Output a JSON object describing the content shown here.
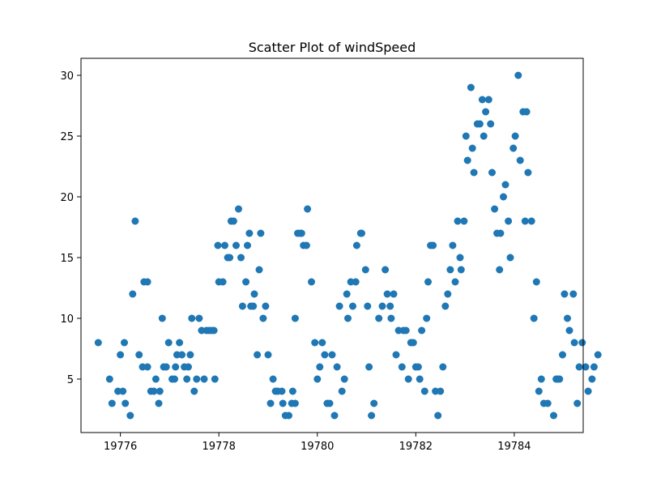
{
  "chart_data": {
    "type": "scatter",
    "title": "Scatter Plot of windSpeed",
    "xlabel": "",
    "ylabel": "",
    "xlim": [
      19775.2,
      19785.4
    ],
    "ylim": [
      0.6,
      31.4
    ],
    "x_ticks": [
      19776,
      19778,
      19780,
      19782,
      19784
    ],
    "y_ticks": [
      5,
      10,
      15,
      20,
      25,
      30
    ],
    "grid": false,
    "marker_color": "#1f77b4",
    "points": [
      [
        19775.55,
        8
      ],
      [
        19775.78,
        5
      ],
      [
        19775.83,
        3
      ],
      [
        19775.95,
        4
      ],
      [
        19776.0,
        7
      ],
      [
        19776.05,
        4
      ],
      [
        19776.08,
        8
      ],
      [
        19776.1,
        3
      ],
      [
        19776.2,
        2
      ],
      [
        19776.25,
        12
      ],
      [
        19776.3,
        18
      ],
      [
        19776.38,
        7
      ],
      [
        19776.45,
        6
      ],
      [
        19776.48,
        13
      ],
      [
        19776.55,
        13
      ],
      [
        19776.55,
        6
      ],
      [
        19776.62,
        4
      ],
      [
        19776.68,
        4
      ],
      [
        19776.72,
        5
      ],
      [
        19776.78,
        3
      ],
      [
        19776.8,
        4
      ],
      [
        19776.85,
        10
      ],
      [
        19776.88,
        6
      ],
      [
        19776.93,
        6
      ],
      [
        19776.98,
        8
      ],
      [
        19777.05,
        5
      ],
      [
        19777.1,
        5
      ],
      [
        19777.12,
        6
      ],
      [
        19777.15,
        7
      ],
      [
        19777.2,
        8
      ],
      [
        19777.25,
        7
      ],
      [
        19777.3,
        6
      ],
      [
        19777.35,
        5
      ],
      [
        19777.38,
        6
      ],
      [
        19777.42,
        7
      ],
      [
        19777.45,
        10
      ],
      [
        19777.5,
        4
      ],
      [
        19777.55,
        5
      ],
      [
        19777.6,
        10
      ],
      [
        19777.65,
        9
      ],
      [
        19777.7,
        5
      ],
      [
        19777.75,
        9
      ],
      [
        19777.8,
        9
      ],
      [
        19777.85,
        9
      ],
      [
        19777.9,
        9
      ],
      [
        19777.92,
        5
      ],
      [
        19777.98,
        16
      ],
      [
        19778.0,
        13
      ],
      [
        19778.08,
        13
      ],
      [
        19778.12,
        16
      ],
      [
        19778.18,
        15
      ],
      [
        19778.22,
        15
      ],
      [
        19778.25,
        18
      ],
      [
        19778.3,
        18
      ],
      [
        19778.35,
        16
      ],
      [
        19778.4,
        19
      ],
      [
        19778.45,
        15
      ],
      [
        19778.48,
        11
      ],
      [
        19778.55,
        13
      ],
      [
        19778.58,
        16
      ],
      [
        19778.62,
        17
      ],
      [
        19778.65,
        11
      ],
      [
        19778.7,
        11
      ],
      [
        19778.72,
        12
      ],
      [
        19778.78,
        7
      ],
      [
        19778.82,
        14
      ],
      [
        19778.85,
        17
      ],
      [
        19778.9,
        10
      ],
      [
        19778.95,
        11
      ],
      [
        19779.0,
        7
      ],
      [
        19779.05,
        3
      ],
      [
        19779.1,
        5
      ],
      [
        19779.15,
        4
      ],
      [
        19779.2,
        4
      ],
      [
        19779.28,
        4
      ],
      [
        19779.3,
        3
      ],
      [
        19779.35,
        2
      ],
      [
        19779.42,
        2
      ],
      [
        19779.48,
        3
      ],
      [
        19779.5,
        4
      ],
      [
        19779.55,
        3
      ],
      [
        19779.55,
        10
      ],
      [
        19779.6,
        17
      ],
      [
        19779.65,
        17
      ],
      [
        19779.68,
        17
      ],
      [
        19779.72,
        16
      ],
      [
        19779.78,
        16
      ],
      [
        19779.8,
        19
      ],
      [
        19779.88,
        13
      ],
      [
        19779.95,
        8
      ],
      [
        19780.0,
        5
      ],
      [
        19780.05,
        6
      ],
      [
        19780.1,
        8
      ],
      [
        19780.15,
        7
      ],
      [
        19780.2,
        3
      ],
      [
        19780.25,
        3
      ],
      [
        19780.3,
        7
      ],
      [
        19780.35,
        2
      ],
      [
        19780.4,
        6
      ],
      [
        19780.45,
        11
      ],
      [
        19780.5,
        4
      ],
      [
        19780.55,
        5
      ],
      [
        19780.6,
        12
      ],
      [
        19780.62,
        10
      ],
      [
        19780.68,
        13
      ],
      [
        19780.72,
        11
      ],
      [
        19780.78,
        13
      ],
      [
        19780.8,
        16
      ],
      [
        19780.88,
        17
      ],
      [
        19780.9,
        17
      ],
      [
        19780.98,
        14
      ],
      [
        19781.02,
        11
      ],
      [
        19781.05,
        6
      ],
      [
        19781.1,
        2
      ],
      [
        19781.15,
        3
      ],
      [
        19781.25,
        10
      ],
      [
        19781.32,
        11
      ],
      [
        19781.38,
        14
      ],
      [
        19781.42,
        12
      ],
      [
        19781.48,
        11
      ],
      [
        19781.5,
        10
      ],
      [
        19781.55,
        12
      ],
      [
        19781.6,
        7
      ],
      [
        19781.65,
        9
      ],
      [
        19781.72,
        6
      ],
      [
        19781.75,
        9
      ],
      [
        19781.8,
        9
      ],
      [
        19781.85,
        5
      ],
      [
        19781.9,
        8
      ],
      [
        19781.95,
        8
      ],
      [
        19782.0,
        6
      ],
      [
        19782.05,
        6
      ],
      [
        19782.08,
        5
      ],
      [
        19782.12,
        9
      ],
      [
        19782.18,
        4
      ],
      [
        19782.22,
        10
      ],
      [
        19782.25,
        13
      ],
      [
        19782.3,
        16
      ],
      [
        19782.35,
        16
      ],
      [
        19782.4,
        4
      ],
      [
        19782.45,
        2
      ],
      [
        19782.5,
        4
      ],
      [
        19782.55,
        6
      ],
      [
        19782.6,
        11
      ],
      [
        19782.65,
        12
      ],
      [
        19782.7,
        14
      ],
      [
        19782.75,
        16
      ],
      [
        19782.8,
        13
      ],
      [
        19782.85,
        18
      ],
      [
        19782.9,
        15
      ],
      [
        19782.92,
        14
      ],
      [
        19782.98,
        18
      ],
      [
        19783.02,
        25
      ],
      [
        19783.05,
        23
      ],
      [
        19783.12,
        29
      ],
      [
        19783.15,
        24
      ],
      [
        19783.18,
        22
      ],
      [
        19783.25,
        26
      ],
      [
        19783.3,
        26
      ],
      [
        19783.35,
        28
      ],
      [
        19783.38,
        25
      ],
      [
        19783.42,
        27
      ],
      [
        19783.48,
        28
      ],
      [
        19783.52,
        26
      ],
      [
        19783.55,
        22
      ],
      [
        19783.6,
        19
      ],
      [
        19783.65,
        17
      ],
      [
        19783.7,
        14
      ],
      [
        19783.72,
        17
      ],
      [
        19783.78,
        20
      ],
      [
        19783.82,
        21
      ],
      [
        19783.88,
        18
      ],
      [
        19783.92,
        15
      ],
      [
        19783.98,
        24
      ],
      [
        19784.02,
        25
      ],
      [
        19784.08,
        30
      ],
      [
        19784.12,
        23
      ],
      [
        19784.18,
        27
      ],
      [
        19784.22,
        18
      ],
      [
        19784.25,
        27
      ],
      [
        19784.28,
        22
      ],
      [
        19784.35,
        18
      ],
      [
        19784.4,
        10
      ],
      [
        19784.45,
        13
      ],
      [
        19784.5,
        4
      ],
      [
        19784.55,
        5
      ],
      [
        19784.6,
        3
      ],
      [
        19784.68,
        3
      ],
      [
        19784.8,
        2
      ],
      [
        19784.85,
        5
      ],
      [
        19784.88,
        5
      ],
      [
        19784.92,
        5
      ],
      [
        19784.98,
        7
      ],
      [
        19785.02,
        12
      ],
      [
        19785.08,
        10
      ],
      [
        19785.12,
        9
      ],
      [
        19785.2,
        12
      ],
      [
        19785.22,
        8
      ],
      [
        19785.28,
        3
      ],
      [
        19785.32,
        6
      ],
      [
        19785.38,
        8
      ],
      [
        19785.45,
        6
      ],
      [
        19785.5,
        4
      ],
      [
        19785.58,
        5
      ],
      [
        19785.62,
        6
      ],
      [
        19785.7,
        7
      ]
    ]
  }
}
